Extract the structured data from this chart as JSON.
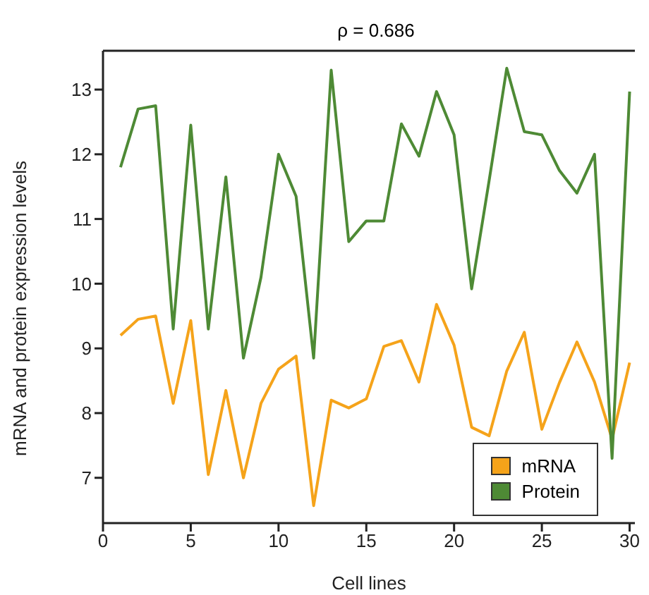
{
  "chart_data": {
    "type": "line",
    "title": "ρ = 0.686",
    "xlabel": "Cell lines",
    "ylabel": "mRNA and protein expression levels",
    "x": [
      1,
      2,
      3,
      4,
      5,
      6,
      7,
      8,
      9,
      10,
      11,
      12,
      13,
      14,
      15,
      16,
      17,
      18,
      19,
      20,
      21,
      22,
      23,
      24,
      25,
      26,
      27,
      28,
      29,
      30
    ],
    "series": [
      {
        "name": "mRNA",
        "color": "#f5a31a",
        "values": [
          9.2,
          9.45,
          9.5,
          8.15,
          9.43,
          7.05,
          8.35,
          7.0,
          8.15,
          8.68,
          8.88,
          6.57,
          8.2,
          8.08,
          8.22,
          9.03,
          9.12,
          8.48,
          9.68,
          9.05,
          7.78,
          7.65,
          8.65,
          9.25,
          7.75,
          8.47,
          9.1,
          8.48,
          7.6,
          8.78
        ]
      },
      {
        "name": "Protein",
        "color": "#4e8a35",
        "values": [
          11.8,
          12.7,
          12.75,
          9.3,
          12.45,
          9.3,
          11.65,
          8.85,
          10.1,
          12.0,
          11.35,
          8.85,
          13.3,
          10.65,
          10.97,
          10.97,
          12.47,
          11.97,
          12.97,
          12.3,
          9.92,
          11.6,
          13.33,
          12.35,
          12.3,
          11.75,
          11.4,
          12.0,
          7.3,
          12.97
        ]
      }
    ],
    "xlim": [
      0,
      30.3
    ],
    "xticks": [
      0,
      5,
      10,
      15,
      20,
      25,
      30
    ],
    "ylim": [
      6.3,
      13.6
    ],
    "yticks": [
      7,
      8,
      9,
      10,
      11,
      12,
      13
    ],
    "grid": false,
    "legend": "bottom right",
    "marker": "none",
    "line_style": "solid"
  }
}
